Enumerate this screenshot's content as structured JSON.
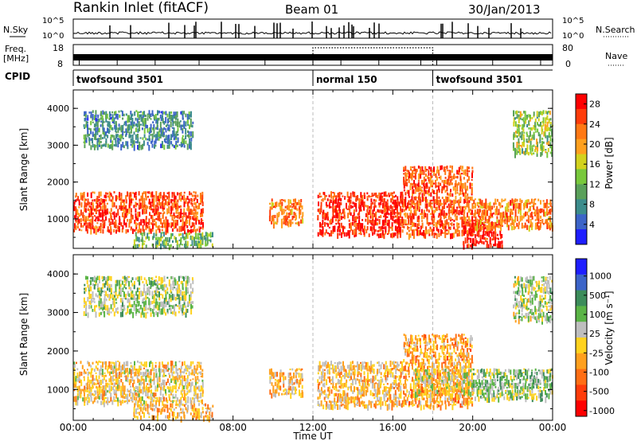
{
  "header": {
    "station": "Rankin Inlet (fitACF)",
    "beam": "Beam 01",
    "date": "30/Jan/2013"
  },
  "top_panel": {
    "nsky_label": "N.Sky",
    "nsky_ticks": [
      "10^5",
      "10^0"
    ],
    "nsearch_label": "N.Search",
    "nsearch_ticks": [
      "10^5",
      "10^0"
    ],
    "freq_label_1": "Freq.",
    "freq_label_2": "[MHz]",
    "freq_ticks": [
      "18",
      "8"
    ],
    "nave_label": "Nave",
    "nave_ticks": [
      "80",
      "0"
    ],
    "cpid_label": "CPID",
    "cpid_segments": [
      {
        "name": "twofsound 3501",
        "start_hour": 0,
        "end_hour": 12
      },
      {
        "name": "normal 150",
        "start_hour": 12,
        "end_hour": 18
      },
      {
        "name": "twofsound 3501",
        "start_hour": 18,
        "end_hour": 24
      }
    ]
  },
  "colors": {
    "power_scale": [
      "#1e1eff",
      "#3c64c8",
      "#3c8c8c",
      "#5aa05a",
      "#78c83c",
      "#d2d21e",
      "#ffa01e",
      "#ff7814",
      "#ff3c0a",
      "#ff0000"
    ],
    "velocity_scale": [
      "#1e1eff",
      "#3c64c8",
      "#3c8c5a",
      "#5ab446",
      "#bebebe",
      "#ffd21e",
      "#ffa01e",
      "#ff6e14",
      "#ff3c0a",
      "#ff0000"
    ]
  },
  "chart_data": [
    {
      "type": "heatmap",
      "panel": "power",
      "ylabel": "Slant Range [km]",
      "yticks": [
        "1000",
        "2000",
        "3000",
        "4000"
      ],
      "ylim": [
        200,
        4500
      ],
      "colorbar_label": "Power [dB]",
      "colorbar_ticks": [
        "4",
        "8",
        "12",
        "16",
        "20",
        "24",
        "28"
      ],
      "colorbar_range": [
        0,
        30
      ],
      "echo_regions": [
        {
          "t0": 0.0,
          "t1": 6.5,
          "r0": 700,
          "r1": 1800,
          "level": 25
        },
        {
          "t0": 3.0,
          "t1": 7.0,
          "r0": 300,
          "r1": 700,
          "level": 12
        },
        {
          "t0": 9.8,
          "t1": 11.5,
          "r0": 900,
          "r1": 1600,
          "level": 22
        },
        {
          "t0": 12.2,
          "t1": 16.5,
          "r0": 600,
          "r1": 1800,
          "level": 27
        },
        {
          "t0": 16.5,
          "t1": 20.0,
          "r0": 600,
          "r1": 2500,
          "level": 24
        },
        {
          "t0": 19.5,
          "t1": 21.5,
          "r0": 300,
          "r1": 1000,
          "level": 28
        },
        {
          "t0": 20.0,
          "t1": 24.0,
          "r0": 800,
          "r1": 1600,
          "level": 22
        },
        {
          "t0": 22.0,
          "t1": 24.0,
          "r0": 2800,
          "r1": 4000,
          "level": 14
        },
        {
          "t0": 0.5,
          "t1": 6.0,
          "r0": 3000,
          "r1": 4000,
          "level": 8
        }
      ]
    },
    {
      "type": "heatmap",
      "panel": "velocity",
      "ylabel": "Slant Range [km]",
      "yticks": [
        "1000",
        "2000",
        "3000",
        "4000"
      ],
      "ylim": [
        200,
        4500
      ],
      "xlabel": "Time UT",
      "xticks": [
        "00:00",
        "04:00",
        "08:00",
        "12:00",
        "16:00",
        "20:00",
        "00:00"
      ],
      "xlim": [
        0,
        24
      ],
      "colorbar_label": "Velocity [m s⁻¹]",
      "colorbar_ticks": [
        "1000",
        "500",
        "100",
        "25",
        "-25",
        "-100",
        "-500",
        "-1000"
      ],
      "colorbar_range": [
        -1000,
        1000
      ],
      "echo_regions": [
        {
          "t0": 0.0,
          "t1": 6.5,
          "r0": 700,
          "r1": 1800,
          "level": -100
        },
        {
          "t0": 3.0,
          "t1": 7.0,
          "r0": 300,
          "r1": 700,
          "level": -200
        },
        {
          "t0": 9.8,
          "t1": 11.5,
          "r0": 900,
          "r1": 1600,
          "level": -150
        },
        {
          "t0": 12.2,
          "t1": 16.5,
          "r0": 600,
          "r1": 1800,
          "level": -150
        },
        {
          "t0": 16.5,
          "t1": 20.0,
          "r0": 600,
          "r1": 2500,
          "level": -300
        },
        {
          "t0": 17.0,
          "t1": 20.0,
          "r0": 900,
          "r1": 1600,
          "level": 0
        },
        {
          "t0": 20.0,
          "t1": 24.0,
          "r0": 800,
          "r1": 1600,
          "level": 200
        },
        {
          "t0": 22.0,
          "t1": 24.0,
          "r0": 2800,
          "r1": 4000,
          "level": 100
        },
        {
          "t0": 0.5,
          "t1": 6.0,
          "r0": 3000,
          "r1": 4000,
          "level": 150
        }
      ]
    }
  ]
}
